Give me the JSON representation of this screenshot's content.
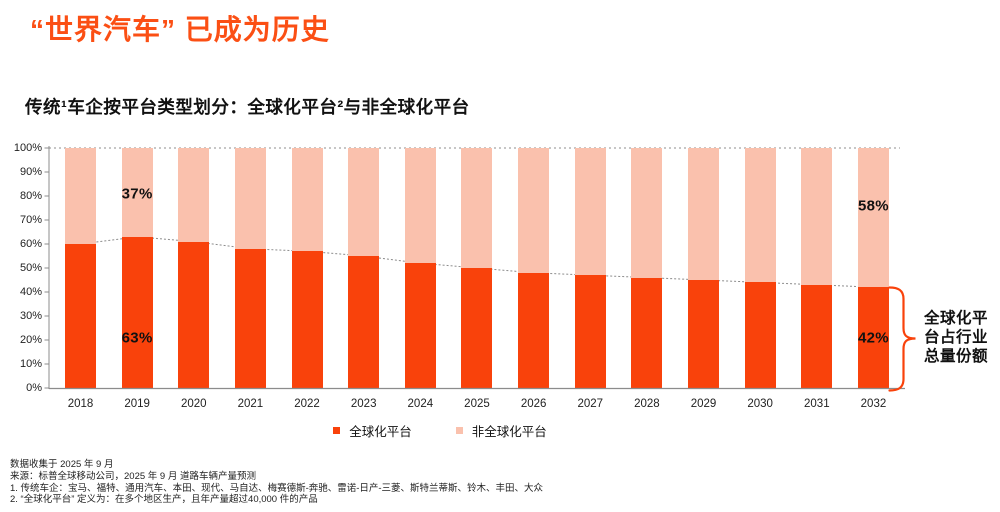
{
  "title": "“世界汽车” 已成为历史",
  "chart_title": "传统¹车企按平台类型划分：全球化平台²与非全球化平台",
  "colors": {
    "title": "#FB4F14",
    "global_platform": "#F9420B",
    "non_global_platform": "#FAC1AD",
    "axis": "#8C8C8C",
    "connector_line": "#8C8C8C",
    "text": "#111111",
    "brace": "#F9420B"
  },
  "chart_data": {
    "type": "bar",
    "stacked": true,
    "title": "传统车企按平台类型划分：全球化平台与非全球化平台",
    "categories": [
      "2018",
      "2019",
      "2020",
      "2021",
      "2022",
      "2023",
      "2024",
      "2025",
      "2026",
      "2027",
      "2028",
      "2029",
      "2030",
      "2031",
      "2032"
    ],
    "series": [
      {
        "name": "全球化平台",
        "color": "#F9420B",
        "values": [
          60,
          63,
          61,
          58,
          57,
          55,
          52,
          50,
          48,
          47,
          46,
          45,
          44,
          43,
          42
        ]
      },
      {
        "name": "非全球化平台",
        "color": "#FAC1AD",
        "values": [
          40,
          37,
          39,
          42,
          43,
          45,
          48,
          50,
          52,
          53,
          54,
          55,
          56,
          57,
          58
        ]
      }
    ],
    "ylim": [
      0,
      100
    ],
    "yticks": [
      "0%",
      "10%",
      "20%",
      "30%",
      "40%",
      "50%",
      "60%",
      "70%",
      "80%",
      "90%",
      "100%"
    ],
    "grid": false,
    "legend_position": "bottom",
    "top_reference_line": 100,
    "value_labels": [
      {
        "text": "37%",
        "category": "2019",
        "series": "非全球化平台",
        "at_percent": 81
      },
      {
        "text": "63%",
        "category": "2019",
        "series": "全球化平台",
        "at_percent": 21
      },
      {
        "text": "58%",
        "category": "2032",
        "series": "非全球化平台",
        "at_percent": 76
      },
      {
        "text": "42%",
        "category": "2032",
        "series": "全球化平台",
        "at_percent": 21
      }
    ]
  },
  "legend": {
    "items": [
      {
        "label": "全球化平台",
        "color": "#F9420B"
      },
      {
        "label": "非全球化平台",
        "color": "#FAC1AD"
      }
    ]
  },
  "callout": {
    "text": "全球化平台占行业总量份额",
    "lines": [
      "全球化平",
      "台占行业",
      "总量份额"
    ]
  },
  "footnotes": [
    "数据收集于 2025 年 9 月",
    "来源：标普全球移动公司，2025 年 9 月 道路车辆产量预测",
    "1. 传统车企：宝马、福特、通用汽车、本田、现代、马自达、梅赛德斯-奔驰、雷诺-日产-三菱、斯特兰蒂斯、铃木、丰田、大众",
    "2. “全球化平台” 定义为：在多个地区生产，且年产量超过40,000 件的产品"
  ]
}
